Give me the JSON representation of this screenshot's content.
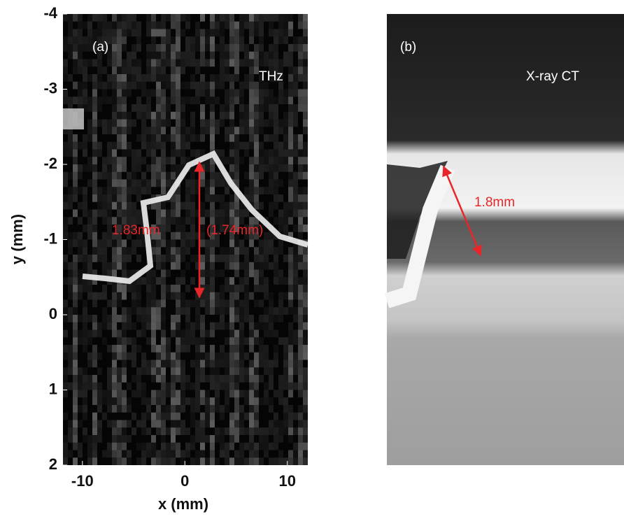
{
  "chart_data": {
    "type": "image",
    "x_label": "x (mm)",
    "y_label": "y (mm)",
    "xlim": [
      -11.9,
      12
    ],
    "xticks": [
      -10,
      0,
      10
    ],
    "ylim": [
      -4,
      2
    ],
    "yticks": [
      -4,
      -3,
      -2,
      -1,
      0,
      1,
      2
    ],
    "y_reversed": true,
    "panels": [
      {
        "label": "(a)",
        "title": "THz",
        "annotations": [
          "1.83mm",
          "(1.74mm)"
        ]
      },
      {
        "label": "(b)",
        "title": "X-ray CT",
        "annotations": [
          "1.8mm"
        ]
      }
    ]
  }
}
